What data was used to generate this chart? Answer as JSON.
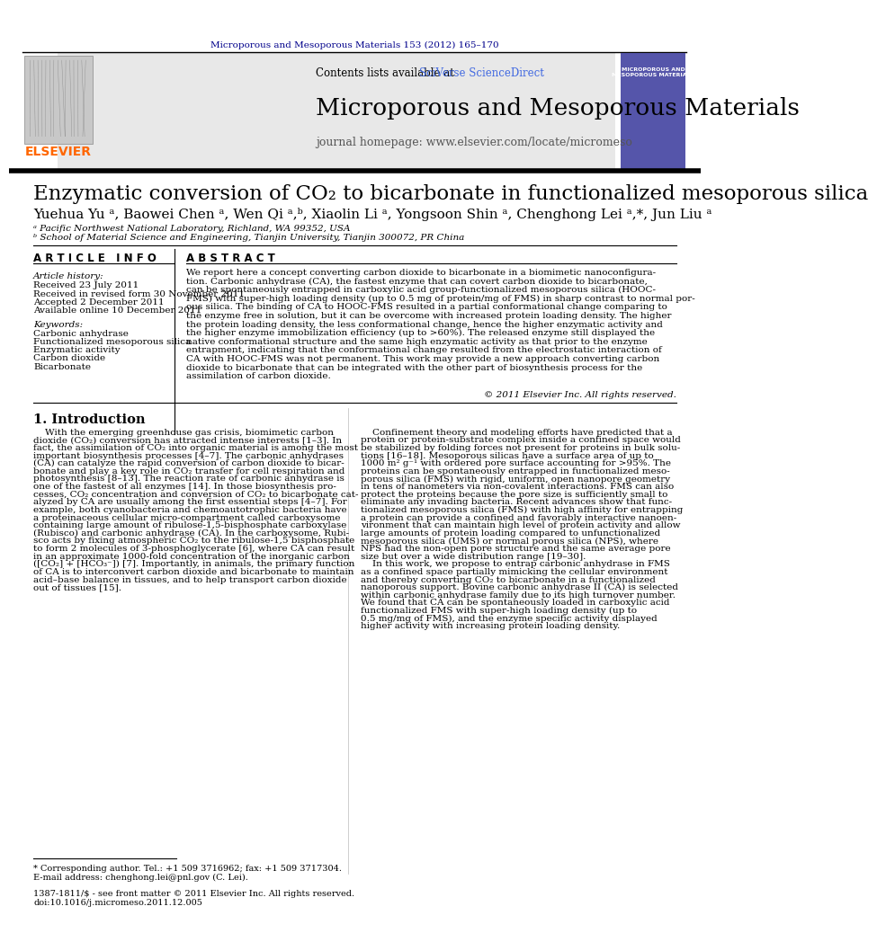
{
  "page_color": "#ffffff",
  "header_journal_text": "Microporous and Mesoporous Materials 153 (2012) 165–170",
  "header_journal_color": "#00008B",
  "journal_name": "Microporous and Mesoporous Materials",
  "journal_homepage": "journal homepage: www.elsevier.com/locate/micromeso",
  "contents_text": "Contents lists available at ",
  "sciverse_text": "SciVerse ScienceDirect",
  "sciverse_color": "#4169E1",
  "header_bg": "#e8e8e8",
  "elsevier_color": "#FF6600",
  "article_title": "Enzymatic conversion of CO₂ to bicarbonate in functionalized mesoporous silica",
  "authors": "Yuehua Yu ᵃ, Baowei Chen ᵃ, Wen Qi ᵃ,ᵇ, Xiaolin Li ᵃ, Yongsoon Shin ᵃ, Chenghong Lei ᵃ,*, Jun Liu ᵃ",
  "affil_a": "ᵃ Pacific Northwest National Laboratory, Richland, WA 99352, USA",
  "affil_b": "ᵇ School of Material Science and Engineering, Tianjin University, Tianjin 300072, PR China",
  "article_info_title": "A R T I C L E   I N F O",
  "abstract_title": "A B S T R A C T",
  "article_history_label": "Article history:",
  "received_text": "Received 23 July 2011",
  "received_revised": "Received in revised form 30 November 2011",
  "accepted_text": "Accepted 2 December 2011",
  "available_text": "Available online 10 December 2011",
  "keywords_label": "Keywords:",
  "kw1": "Carbonic anhydrase",
  "kw2": "Functionalized mesoporous silica",
  "kw3": "Enzymatic activity",
  "kw4": "Carbon dioxide",
  "kw5": "Bicarbonate",
  "copyright_text": "© 2011 Elsevier Inc. All rights reserved.",
  "section1_title": "1. Introduction",
  "footnote_corresponding": "* Corresponding author. Tel.: +1 509 3716962; fax: +1 509 3717304.",
  "footnote_email": "E-mail address: chenghong.lei@pnl.gov (C. Lei).",
  "footer_issn": "1387-1811/$ - see front matter © 2011 Elsevier Inc. All rights reserved.",
  "footer_doi": "doi:10.1016/j.micromeso.2011.12.005"
}
